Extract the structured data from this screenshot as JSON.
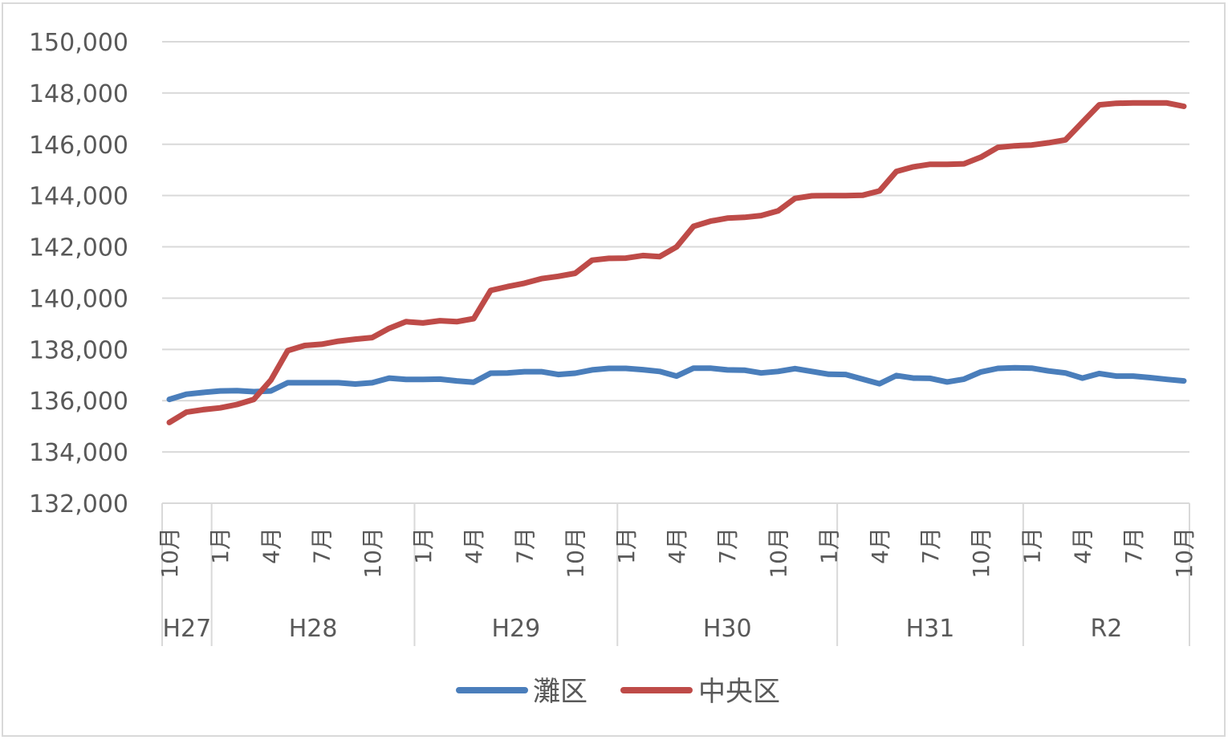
{
  "chart_data": {
    "type": "line",
    "ylim": [
      132000,
      150000
    ],
    "yticks": [
      "150,000",
      "148,000",
      "146,000",
      "144,000",
      "142,000",
      "140,000",
      "138,000",
      "136,000",
      "134,000",
      "132,000"
    ],
    "ytick_values": [
      150000,
      148000,
      146000,
      144000,
      142000,
      140000,
      138000,
      136000,
      134000,
      132000
    ],
    "grid": true,
    "legend_position": "bottom",
    "x_tick_labels": [
      {
        "index": 0,
        "label": "10月"
      },
      {
        "index": 3,
        "label": "1月"
      },
      {
        "index": 6,
        "label": "4月"
      },
      {
        "index": 9,
        "label": "7月"
      },
      {
        "index": 12,
        "label": "10月"
      },
      {
        "index": 15,
        "label": "1月"
      },
      {
        "index": 18,
        "label": "4月"
      },
      {
        "index": 21,
        "label": "7月"
      },
      {
        "index": 24,
        "label": "10月"
      },
      {
        "index": 27,
        "label": "1月"
      },
      {
        "index": 30,
        "label": "4月"
      },
      {
        "index": 33,
        "label": "7月"
      },
      {
        "index": 36,
        "label": "10月"
      },
      {
        "index": 39,
        "label": "1月"
      },
      {
        "index": 42,
        "label": "4月"
      },
      {
        "index": 45,
        "label": "7月"
      },
      {
        "index": 48,
        "label": "10月"
      },
      {
        "index": 51,
        "label": "1月"
      },
      {
        "index": 54,
        "label": "4月"
      },
      {
        "index": 57,
        "label": "7月"
      },
      {
        "index": 60,
        "label": "10月"
      }
    ],
    "groups": [
      {
        "label": "H27",
        "start": 0,
        "end": 2
      },
      {
        "label": "H28",
        "start": 3,
        "end": 14
      },
      {
        "label": "H29",
        "start": 15,
        "end": 26
      },
      {
        "label": "H30",
        "start": 27,
        "end": 39
      },
      {
        "label": "H31",
        "start": 40,
        "end": 50
      },
      {
        "label": "R2",
        "start": 51,
        "end": 60
      }
    ],
    "series": [
      {
        "name": "灘区",
        "color": "#4a7ebb",
        "values": [
          136050,
          136250,
          136320,
          136380,
          136390,
          136350,
          136380,
          136700,
          136700,
          136700,
          136700,
          136650,
          136700,
          136880,
          136830,
          136830,
          136840,
          136770,
          136720,
          137070,
          137080,
          137130,
          137130,
          137020,
          137070,
          137200,
          137260,
          137260,
          137210,
          137140,
          136960,
          137270,
          137270,
          137200,
          137190,
          137080,
          137140,
          137250,
          137140,
          137030,
          137020,
          136840,
          136660,
          136980,
          136880,
          136870,
          136730,
          136840,
          137120,
          137260,
          137280,
          137270,
          137160,
          137080,
          136880,
          137060,
          136960,
          136960,
          136900,
          136830,
          136770
        ]
      },
      {
        "name": "中央区",
        "color": "#be4b48",
        "values": [
          135150,
          135550,
          135650,
          135720,
          135850,
          136050,
          136800,
          137950,
          138150,
          138200,
          138320,
          138400,
          138460,
          138820,
          139080,
          139030,
          139120,
          139080,
          139200,
          140300,
          140450,
          140580,
          140760,
          140850,
          140970,
          141480,
          141550,
          141560,
          141660,
          141620,
          142000,
          142800,
          143000,
          143120,
          143150,
          143220,
          143400,
          143890,
          143990,
          144000,
          144000,
          144010,
          144180,
          144940,
          145120,
          145220,
          145220,
          145240,
          145500,
          145880,
          145940,
          145970,
          146060,
          146170,
          146860,
          147540,
          147600,
          147610,
          147610,
          147610,
          147480
        ]
      }
    ]
  }
}
